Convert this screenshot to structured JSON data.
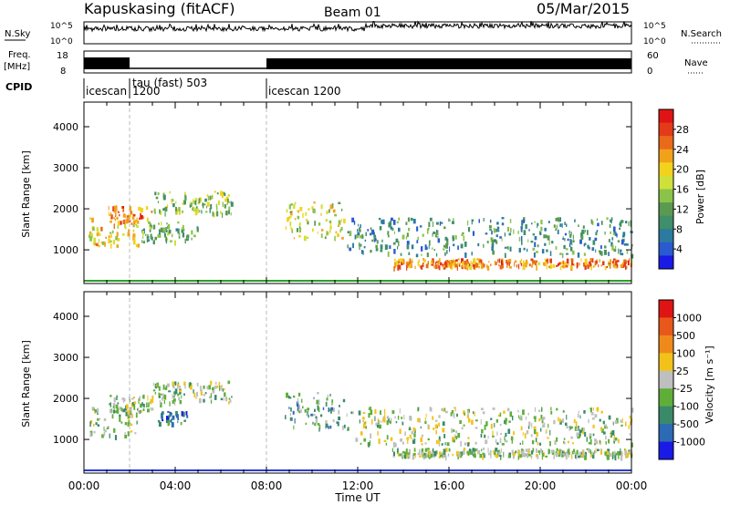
{
  "header": {
    "title": "Kapuskasing (fitACF)",
    "beam": "Beam 01",
    "date": "05/Mar/2015"
  },
  "top_panels": {
    "nsky_label": "N.Sky",
    "nsky_ticks": [
      "10^5",
      "10^0"
    ],
    "nsearch_label": "N.Search",
    "nsearch_ticks": [
      "10^5",
      "10^0"
    ],
    "freq_label": "Freq.",
    "freq_unit": "[MHz]",
    "freq_ticks": [
      "18",
      "8"
    ],
    "nave_label": "Nave",
    "nave_ticks": [
      "60",
      "0"
    ],
    "cpid_label": "CPID",
    "cpid_modes": [
      {
        "label": "icescan",
        "start_hour": 0.0
      },
      {
        "label": "1200",
        "start_hour": 0.75
      },
      {
        "label": "tau (fast) 503",
        "start_hour": 2.0
      },
      {
        "label": "icescan  1200",
        "start_hour": 8.0
      }
    ]
  },
  "chart_data": [
    {
      "type": "heatmap",
      "name": "power",
      "ylabel": "Slant Range [km]",
      "x_ticks": [
        "00:00",
        "04:00",
        "08:00",
        "12:00",
        "16:00",
        "20:00",
        "00:00"
      ],
      "y_ticks": [
        1000,
        2000,
        3000,
        4000
      ],
      "ylim": [
        180,
        4600
      ],
      "xlim_hours": [
        0,
        24
      ],
      "colorbar": {
        "label": "Power [dB]",
        "ticks": [
          "4",
          "8",
          "12",
          "16",
          "20",
          "24",
          "28"
        ],
        "colors": [
          "#1a1ae6",
          "#2a5ad0",
          "#2c7aa0",
          "#3f8f6a",
          "#5a9a50",
          "#8bc34a",
          "#cfe03a",
          "#f3d21c",
          "#f2a21a",
          "#ea6a1a",
          "#e33b1a",
          "#e01414"
        ]
      },
      "echo_regions": [
        {
          "t0": 0.2,
          "t1": 2.4,
          "r0": 1100,
          "r1": 1800,
          "level": 0.6
        },
        {
          "t0": 1.0,
          "t1": 3.0,
          "r0": 1700,
          "r1": 2100,
          "level": 0.8
        },
        {
          "t0": 3.0,
          "t1": 6.5,
          "r0": 1900,
          "r1": 2450,
          "level": 0.45
        },
        {
          "t0": 2.5,
          "t1": 5.0,
          "r0": 1200,
          "r1": 1700,
          "level": 0.4
        },
        {
          "t0": 8.8,
          "t1": 11.4,
          "r0": 1300,
          "r1": 2200,
          "level": 0.55
        },
        {
          "t0": 11.5,
          "t1": 24.0,
          "r0": 900,
          "r1": 1800,
          "level": 0.3
        },
        {
          "t0": 13.5,
          "t1": 24.0,
          "r0": 600,
          "r1": 800,
          "level": 0.75
        }
      ]
    },
    {
      "type": "heatmap",
      "name": "velocity",
      "ylabel": "Slant Range [km]",
      "xlabel": "Time UT",
      "x_ticks": [
        "00:00",
        "04:00",
        "08:00",
        "12:00",
        "16:00",
        "20:00",
        "00:00"
      ],
      "y_ticks": [
        1000,
        2000,
        3000,
        4000
      ],
      "ylim": [
        180,
        4600
      ],
      "xlim_hours": [
        0,
        24
      ],
      "colorbar": {
        "label": "Velocity [m s⁻¹]",
        "ticks": [
          "1000",
          "500",
          "100",
          "25",
          "-25",
          "-100",
          "-500",
          "-1000"
        ],
        "colors": [
          "#1a1ae6",
          "#2c6ab4",
          "#3a8a6a",
          "#5fae3a",
          "#bfbfbf",
          "#f2c21a",
          "#ef8a1a",
          "#e8581a",
          "#e01414"
        ]
      },
      "echo_regions": [
        {
          "t0": 0.2,
          "t1": 2.4,
          "r0": 1100,
          "r1": 1800,
          "level": 0.45
        },
        {
          "t0": 1.0,
          "t1": 3.0,
          "r0": 1700,
          "r1": 2100,
          "level": 0.45
        },
        {
          "t0": 3.0,
          "t1": 6.5,
          "r0": 1900,
          "r1": 2450,
          "level": 0.45
        },
        {
          "t0": 3.2,
          "t1": 4.5,
          "r0": 1400,
          "r1": 1700,
          "level": 0.2
        },
        {
          "t0": 8.8,
          "t1": 11.4,
          "r0": 1300,
          "r1": 2200,
          "level": 0.35
        },
        {
          "t0": 11.5,
          "t1": 24.0,
          "r0": 900,
          "r1": 1800,
          "level": 0.45
        },
        {
          "t0": 13.5,
          "t1": 24.0,
          "r0": 600,
          "r1": 800,
          "level": 0.45
        }
      ]
    }
  ],
  "xlabel": "Time UT"
}
